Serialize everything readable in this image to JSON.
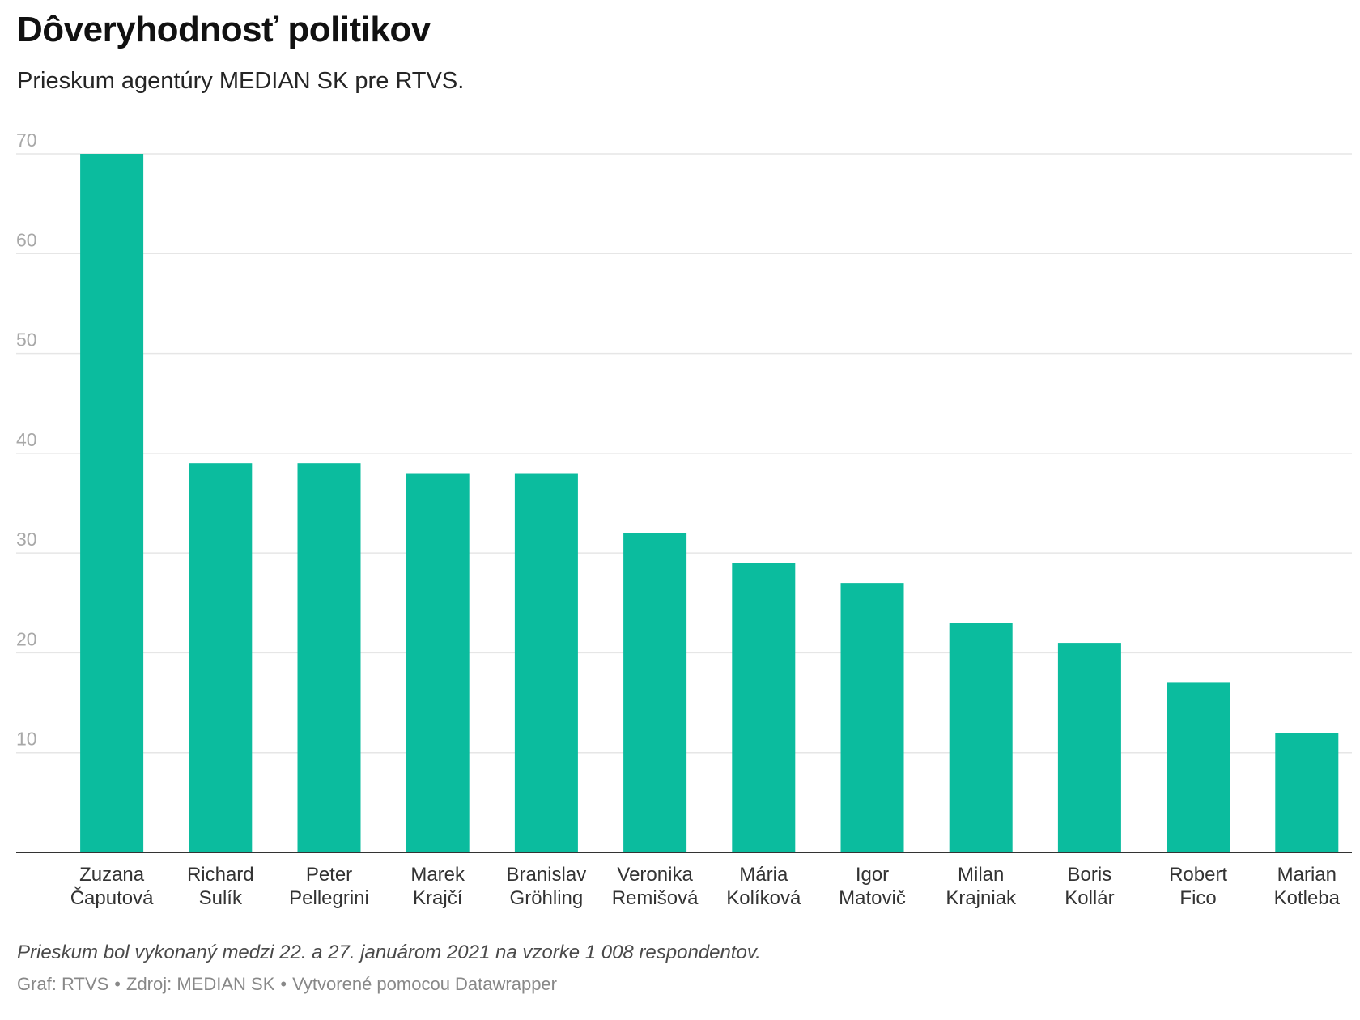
{
  "header": {
    "title": "Dôveryhodnosť politikov",
    "subtitle": "Prieskum agentúry MEDIAN SK pre RTVS."
  },
  "chart_data": {
    "type": "bar",
    "categories": [
      [
        "Zuzana",
        "Čaputová"
      ],
      [
        "Richard",
        "Sulík"
      ],
      [
        "Peter",
        "Pellegrini"
      ],
      [
        "Marek",
        "Krajčí"
      ],
      [
        "Branislav",
        "Gröhling"
      ],
      [
        "Veronika",
        "Remišová"
      ],
      [
        "Mária",
        "Kolíková"
      ],
      [
        "Igor",
        "Matovič"
      ],
      [
        "Milan",
        "Krajniak"
      ],
      [
        "Boris",
        "Kollár"
      ],
      [
        "Robert",
        "Fico"
      ],
      [
        "Marian",
        "Kotleba"
      ]
    ],
    "values": [
      70,
      39,
      39,
      38,
      38,
      32,
      29,
      27,
      23,
      21,
      17,
      12
    ],
    "ylim": [
      0,
      70
    ],
    "yticks": [
      10,
      20,
      30,
      40,
      50,
      60,
      70
    ],
    "grid": true,
    "bar_color": "#0bbc9e",
    "gridline_color": "#e6e6e6",
    "tick_label_color": "#a8a8a8",
    "baseline_color": "#333333"
  },
  "footer": {
    "note": "Prieskum bol vykonaný medzi 22. a 27. januárom 2021 na vzorke 1 008 respondentov.",
    "graph": "Graf: RTVS",
    "separator": "•",
    "source": "Zdroj: MEDIAN SK",
    "tool": "Vytvorené pomocou Datawrapper"
  }
}
